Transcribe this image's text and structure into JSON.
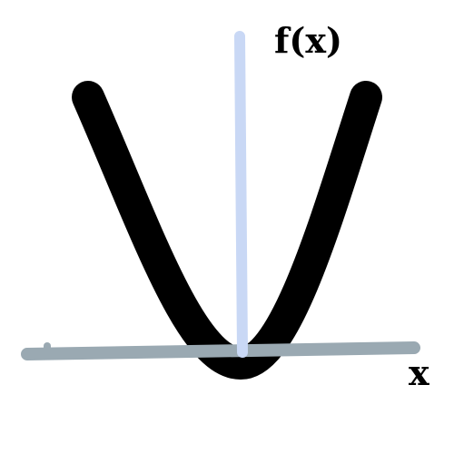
{
  "diagram": {
    "function_label": "f(x)",
    "x_axis_label": "x",
    "colors": {
      "curve": "#000000",
      "x_axis": "#9aa9b2",
      "y_axis": "#c9d8f5",
      "background": "#ffffff"
    }
  }
}
